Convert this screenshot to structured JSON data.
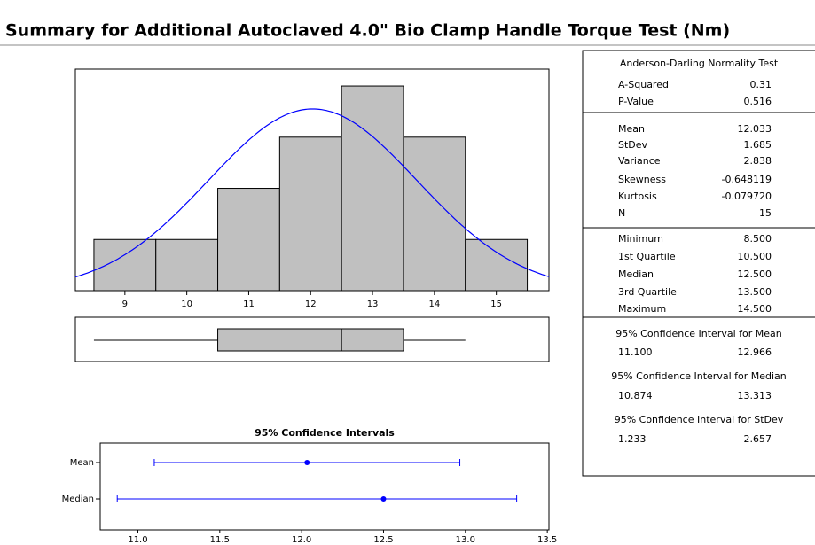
{
  "title": "Summary for Additional Autoclaved 4.0\" Bio Clamp Handle Torque Test (Nm)",
  "chart_data": [
    {
      "type": "histogram",
      "bins": [
        8.5,
        9.5,
        10.5,
        11.5,
        12.5,
        13.5,
        14.5,
        15.5
      ],
      "counts": [
        1,
        1,
        2,
        3,
        4,
        3,
        1
      ],
      "color": "#c0c0c0",
      "curve_color": "#0000ff",
      "xlim": [
        8.2,
        15.85
      ],
      "ylim": [
        0,
        4.33
      ],
      "xticks": [
        9,
        10,
        11,
        12,
        13,
        14,
        15
      ]
    },
    {
      "type": "boxplot",
      "color": "#c0c0c0"
    },
    {
      "type": "interval",
      "title": "95% Confidence Intervals",
      "categories": [
        "Mean",
        "Median"
      ],
      "color": "#0000ff",
      "xlim": [
        10.77,
        13.51
      ],
      "xticks": [
        {
          "value": 11,
          "label": "11.0"
        },
        {
          "value": 11.5,
          "label": "11.5"
        },
        {
          "value": 12,
          "label": "12.0"
        },
        {
          "value": 12.5,
          "label": "12.5"
        },
        {
          "value": 13,
          "label": "13.0"
        },
        {
          "value": 13.5,
          "label": "13.5"
        }
      ]
    }
  ],
  "stats": {
    "sections": [
      {
        "title": "Anderson-Darling Normality Test",
        "rows": [
          {
            "name": "A-Squared",
            "value": 0.31
          },
          {
            "name": "P-Value",
            "value": 0.516
          }
        ]
      },
      {
        "rows": [
          {
            "name": "Mean",
            "value": 12.033
          },
          {
            "name": "StDev",
            "value": 1.685
          },
          {
            "name": "Variance",
            "value": 2.838
          },
          {
            "name": "Skewness",
            "value": -0.648119
          },
          {
            "name": "Kurtosis",
            "value": {
              "value": -0.07972,
              "label": "-0.079720"
            }
          },
          {
            "name": "N",
            "value": 15
          }
        ]
      },
      {
        "rows": [
          {
            "name": "Minimum",
            "value": {
              "value": 8.5,
              "label": "8.500"
            }
          },
          {
            "name": "1st Quartile",
            "value": {
              "value": 10.5,
              "label": "10.500"
            }
          },
          {
            "name": "Median",
            "value": {
              "value": 12.5,
              "label": "12.500"
            }
          },
          {
            "name": "3rd Quartile",
            "value": {
              "value": 13.5,
              "label": "13.500"
            }
          },
          {
            "name": "Maximum",
            "value": {
              "value": 14.5,
              "label": "14.500"
            }
          }
        ]
      },
      {
        "title": "95% Confidence Interval for Mean",
        "interval": [
          {
            "value": 11.1,
            "label": "11.100"
          },
          12.966
        ]
      },
      {
        "title": "95% Confidence Interval for Median",
        "interval": [
          10.874,
          13.313
        ]
      },
      {
        "title": "95% Confidence Interval for StDev",
        "interval": [
          1.233,
          2.657
        ]
      }
    ]
  }
}
